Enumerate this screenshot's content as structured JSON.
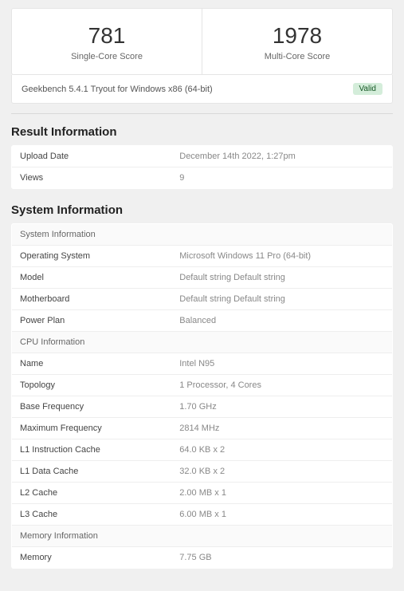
{
  "scores": {
    "single": {
      "value": "781",
      "label": "Single-Core Score"
    },
    "multi": {
      "value": "1978",
      "label": "Multi-Core Score"
    }
  },
  "benchmark": {
    "name": "Geekbench 5.4.1 Tryout for Windows x86 (64-bit)",
    "badge": "Valid"
  },
  "result_info": {
    "title": "Result Information",
    "rows": {
      "upload_date": {
        "label": "Upload Date",
        "value": "December 14th 2022, 1:27pm"
      },
      "views": {
        "label": "Views",
        "value": "9"
      }
    }
  },
  "system_info": {
    "title": "System Information",
    "sys_header": "System Information",
    "sys": {
      "os": {
        "label": "Operating System",
        "value": "Microsoft Windows 11 Pro (64-bit)"
      },
      "model": {
        "label": "Model",
        "value": "Default string Default string"
      },
      "motherboard": {
        "label": "Motherboard",
        "value": "Default string Default string"
      },
      "power_plan": {
        "label": "Power Plan",
        "value": "Balanced"
      }
    },
    "cpu_header": "CPU Information",
    "cpu": {
      "name": {
        "label": "Name",
        "value": "Intel N95"
      },
      "topology": {
        "label": "Topology",
        "value": "1 Processor, 4 Cores"
      },
      "base_freq": {
        "label": "Base Frequency",
        "value": "1.70 GHz"
      },
      "max_freq": {
        "label": "Maximum Frequency",
        "value": "2814 MHz"
      },
      "l1i": {
        "label": "L1 Instruction Cache",
        "value": "64.0 KB x 2"
      },
      "l1d": {
        "label": "L1 Data Cache",
        "value": "32.0 KB x 2"
      },
      "l2": {
        "label": "L2 Cache",
        "value": "2.00 MB x 1"
      },
      "l3": {
        "label": "L3 Cache",
        "value": "6.00 MB x 1"
      }
    },
    "mem_header": "Memory Information",
    "mem": {
      "memory": {
        "label": "Memory",
        "value": "7.75 GB"
      }
    }
  },
  "colors": {
    "page_bg": "#f0f0f0",
    "card_bg": "#ffffff",
    "border": "#e5e5e5",
    "value_text": "#888888",
    "badge_bg": "#d4edda",
    "badge_text": "#155724"
  }
}
